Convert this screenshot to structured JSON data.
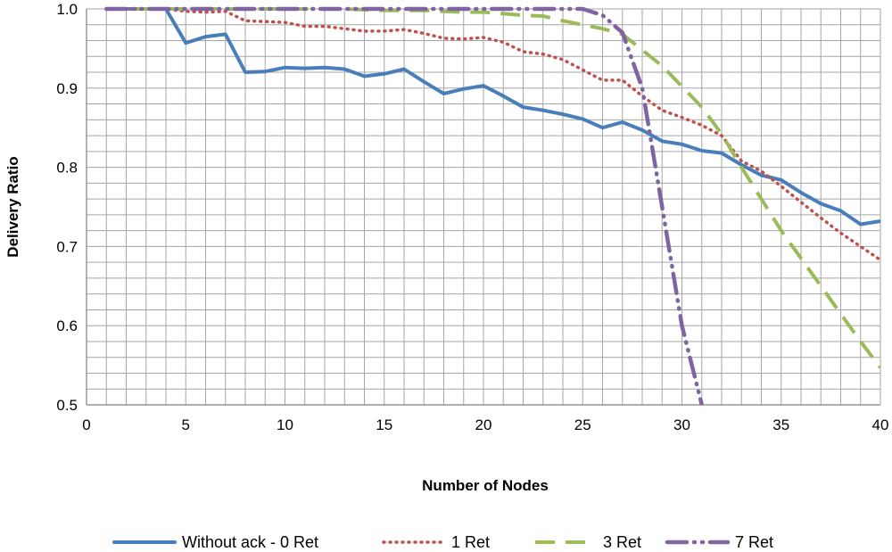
{
  "chart_data": {
    "type": "line",
    "xlabel": "Number of Nodes",
    "ylabel": "Delivery Ratio",
    "xlim": [
      0,
      40
    ],
    "ylim": [
      0.5,
      1.0
    ],
    "x_ticks": [
      0,
      5,
      10,
      15,
      20,
      25,
      30,
      35,
      40
    ],
    "y_ticks": [
      0.5,
      0.6,
      0.7,
      0.8,
      0.9,
      1.0
    ],
    "x_tick_labels": [
      "0",
      "5",
      "10",
      "15",
      "20",
      "25",
      "30",
      "35",
      "40"
    ],
    "y_tick_labels": [
      "0.5",
      "0.6",
      "0.7",
      "0.8",
      "0.9",
      "1.0"
    ],
    "grid": true,
    "legend_position": "bottom",
    "series": [
      {
        "name": "Without ack - 0 Ret",
        "color": "#4a7ebb",
        "style": "solid",
        "x": [
          1,
          2,
          3,
          4,
          5,
          6,
          7,
          8,
          9,
          10,
          11,
          12,
          13,
          14,
          15,
          16,
          17,
          18,
          19,
          20,
          21,
          22,
          23,
          24,
          25,
          26,
          27,
          28,
          29,
          30,
          31,
          32,
          33,
          34,
          35,
          36,
          37,
          38,
          39,
          40
        ],
        "y": [
          1.0,
          1.0,
          1.0,
          1.0,
          0.957,
          0.965,
          0.968,
          0.92,
          0.921,
          0.926,
          0.925,
          0.926,
          0.924,
          0.915,
          0.918,
          0.924,
          0.908,
          0.893,
          0.899,
          0.903,
          0.89,
          0.876,
          0.872,
          0.867,
          0.861,
          0.85,
          0.857,
          0.847,
          0.833,
          0.829,
          0.821,
          0.818,
          0.803,
          0.79,
          0.784,
          0.768,
          0.754,
          0.745,
          0.728,
          0.732
        ]
      },
      {
        "name": "1 Ret",
        "color": "#c0504d",
        "style": "dotted",
        "x": [
          1,
          2,
          3,
          4,
          5,
          6,
          7,
          8,
          9,
          10,
          11,
          12,
          13,
          14,
          15,
          16,
          17,
          18,
          19,
          20,
          21,
          22,
          23,
          24,
          25,
          26,
          27,
          28,
          29,
          30,
          31,
          32,
          33,
          34,
          35,
          36,
          37,
          38,
          39,
          40
        ],
        "y": [
          1.0,
          1.0,
          1.0,
          1.0,
          0.997,
          0.996,
          0.997,
          0.985,
          0.984,
          0.983,
          0.978,
          0.978,
          0.975,
          0.972,
          0.972,
          0.974,
          0.969,
          0.963,
          0.962,
          0.964,
          0.958,
          0.946,
          0.943,
          0.936,
          0.923,
          0.91,
          0.91,
          0.89,
          0.872,
          0.863,
          0.853,
          0.84,
          0.808,
          0.795,
          0.776,
          0.756,
          0.736,
          0.717,
          0.7,
          0.683
        ]
      },
      {
        "name": "3 Ret",
        "color": "#9bbb59",
        "style": "dashed",
        "x": [
          1,
          2,
          3,
          4,
          5,
          6,
          7,
          8,
          9,
          10,
          11,
          12,
          13,
          14,
          15,
          16,
          17,
          18,
          19,
          20,
          21,
          22,
          23,
          24,
          25,
          26,
          27,
          28,
          29,
          30,
          31,
          32,
          33,
          34,
          35,
          36,
          37,
          38,
          39,
          40
        ],
        "y": [
          1.0,
          1.0,
          1.0,
          1.0,
          1.0,
          1.0,
          1.0,
          1.0,
          1.0,
          1.0,
          1.0,
          1.0,
          1.0,
          0.999,
          0.998,
          0.998,
          0.998,
          0.997,
          0.996,
          0.996,
          0.994,
          0.992,
          0.991,
          0.985,
          0.98,
          0.975,
          0.968,
          0.948,
          0.928,
          0.902,
          0.876,
          0.842,
          0.8,
          0.76,
          0.72,
          0.685,
          0.65,
          0.615,
          0.58,
          0.547
        ]
      },
      {
        "name": "7 Ret",
        "color": "#8064a2",
        "style": "dash-dot-dot",
        "x": [
          1,
          2,
          3,
          4,
          5,
          6,
          7,
          8,
          9,
          10,
          11,
          12,
          13,
          14,
          15,
          16,
          17,
          18,
          19,
          20,
          21,
          22,
          23,
          24,
          25,
          26,
          27,
          28,
          29,
          30,
          31
        ],
        "y": [
          1.0,
          1.0,
          1.0,
          1.0,
          1.0,
          1.0,
          1.0,
          1.0,
          1.0,
          1.0,
          1.0,
          1.0,
          1.0,
          1.0,
          1.0,
          1.0,
          1.0,
          1.0,
          1.0,
          1.0,
          1.0,
          1.0,
          1.0,
          1.0,
          1.0,
          0.992,
          0.97,
          0.9,
          0.75,
          0.6,
          0.5
        ]
      }
    ]
  }
}
